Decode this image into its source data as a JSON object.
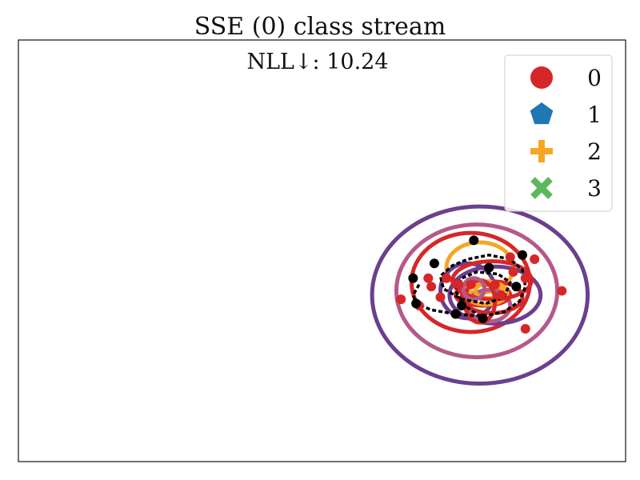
{
  "chart_data": {
    "type": "scatter",
    "title": "SSE (0) class stream",
    "subtitle": "NLL↓: 10.24",
    "xlabel": "",
    "ylabel": "",
    "xlim": [
      -10,
      10
    ],
    "ylim": [
      -10,
      10
    ],
    "grid": false,
    "legend": {
      "placement": "top-right",
      "entries": [
        {
          "label": "0",
          "marker": "circle",
          "color": "#d62728"
        },
        {
          "label": "1",
          "marker": "pentagon",
          "color": "#1f77b4"
        },
        {
          "label": "2",
          "marker": "plus",
          "color": "#f5a623"
        },
        {
          "label": "3",
          "marker": "x",
          "color": "#5cb85c"
        }
      ]
    },
    "series": [
      {
        "name": "0",
        "color": "#d62728",
        "points": [
          [
            3.5,
            -1.3
          ],
          [
            2.6,
            -2.3
          ],
          [
            3.2,
            -2.6
          ],
          [
            4.5,
            -1.6
          ],
          [
            4.1,
            -1.3
          ],
          [
            3.6,
            -1.7
          ],
          [
            3.9,
            -2.2
          ],
          [
            4.9,
            -1.6
          ],
          [
            5.7,
            -1.6
          ],
          [
            6.3,
            -1.0
          ],
          [
            5.9,
            -2.1
          ],
          [
            6.7,
            -1.3
          ],
          [
            6.2,
            -0.3
          ],
          [
            7.0,
            -0.4
          ],
          [
            7.9,
            -1.9
          ],
          [
            6.7,
            -3.7
          ]
        ]
      },
      {
        "name": "",
        "color": "#000000",
        "points": [
          [
            3.7,
            -0.6
          ],
          [
            5.0,
            0.5
          ],
          [
            3.0,
            -1.3
          ],
          [
            3.1,
            -2.5
          ],
          [
            4.4,
            -3.0
          ],
          [
            5.3,
            -3.2
          ],
          [
            6.4,
            -1.7
          ],
          [
            6.6,
            -0.2
          ],
          [
            5.5,
            -0.8
          ],
          [
            4.6,
            -2.6
          ]
        ]
      }
    ],
    "ellipses": [
      {
        "cx": 5.2,
        "cy": -2.1,
        "rx": 3.55,
        "ry": 4.2,
        "color": "#6b3f8e"
      },
      {
        "cx": 5.1,
        "cy": -1.9,
        "rx": 2.65,
        "ry": 3.15,
        "color": "#b5598a"
      },
      {
        "cx": 4.9,
        "cy": -1.5,
        "rx": 1.95,
        "ry": 2.35,
        "color": "#d62728"
      },
      {
        "cx": 5.2,
        "cy": -0.8,
        "rx": 1.1,
        "ry": 1.2,
        "color": "#f5a623"
      },
      {
        "cx": 5.7,
        "cy": -2.1,
        "rx": 1.5,
        "ry": 1.35,
        "color": "#6b3f8e"
      },
      {
        "cx": 4.8,
        "cy": -1.9,
        "rx": 0.9,
        "ry": 1.3,
        "color": "#6b3f8e"
      },
      {
        "cx": 5.5,
        "cy": -2.6,
        "rx": 0.7,
        "ry": 0.75,
        "color": "#b5598a"
      },
      {
        "cx": 5.6,
        "cy": -2.2,
        "rx": 1.0,
        "ry": 0.75,
        "color": "#d62728"
      },
      {
        "cx": 5.3,
        "cy": -2.1,
        "rx": 0.9,
        "ry": 0.5,
        "color": "#d62728"
      },
      {
        "cx": 5.4,
        "cy": -2.0,
        "rx": 0.7,
        "ry": 0.55,
        "color": "#f5a623"
      },
      {
        "cx": 5.5,
        "cy": -1.9,
        "rx": 0.45,
        "ry": 0.35,
        "color": "#f5a623"
      },
      {
        "cx": 5.6,
        "cy": -1.4,
        "rx": 1.3,
        "ry": 0.9,
        "color": "#d62728"
      },
      {
        "cx": 5.2,
        "cy": -2.4,
        "rx": 0.5,
        "ry": 1.0,
        "color": "#d62728"
      },
      {
        "cx": 5.0,
        "cy": -1.8,
        "rx": 0.35,
        "ry": 0.5,
        "color": "#b5598a"
      }
    ],
    "stream": {
      "color": "#000000",
      "points": [
        [
          3.2,
          -1.6
        ],
        [
          3.0,
          -2.1
        ],
        [
          3.1,
          -2.5
        ],
        [
          3.6,
          -2.8
        ],
        [
          4.4,
          -3.0
        ],
        [
          5.3,
          -3.1
        ],
        [
          6.0,
          -2.9
        ],
        [
          6.5,
          -2.4
        ],
        [
          6.7,
          -1.7
        ],
        [
          6.6,
          -0.9
        ],
        [
          6.2,
          -0.4
        ],
        [
          5.5,
          -0.2
        ],
        [
          4.8,
          -0.4
        ],
        [
          4.3,
          -0.7
        ],
        [
          3.9,
          -1.2
        ],
        [
          4.0,
          -1.8
        ],
        [
          4.6,
          -2.3
        ],
        [
          5.4,
          -2.5
        ],
        [
          6.0,
          -2.2
        ],
        [
          6.2,
          -1.5
        ],
        [
          5.8,
          -1.1
        ],
        [
          5.1,
          -1.0
        ],
        [
          4.6,
          -1.3
        ],
        [
          4.4,
          -1.9
        ],
        [
          4.7,
          -2.6
        ],
        [
          5.3,
          -3.2
        ]
      ]
    }
  }
}
